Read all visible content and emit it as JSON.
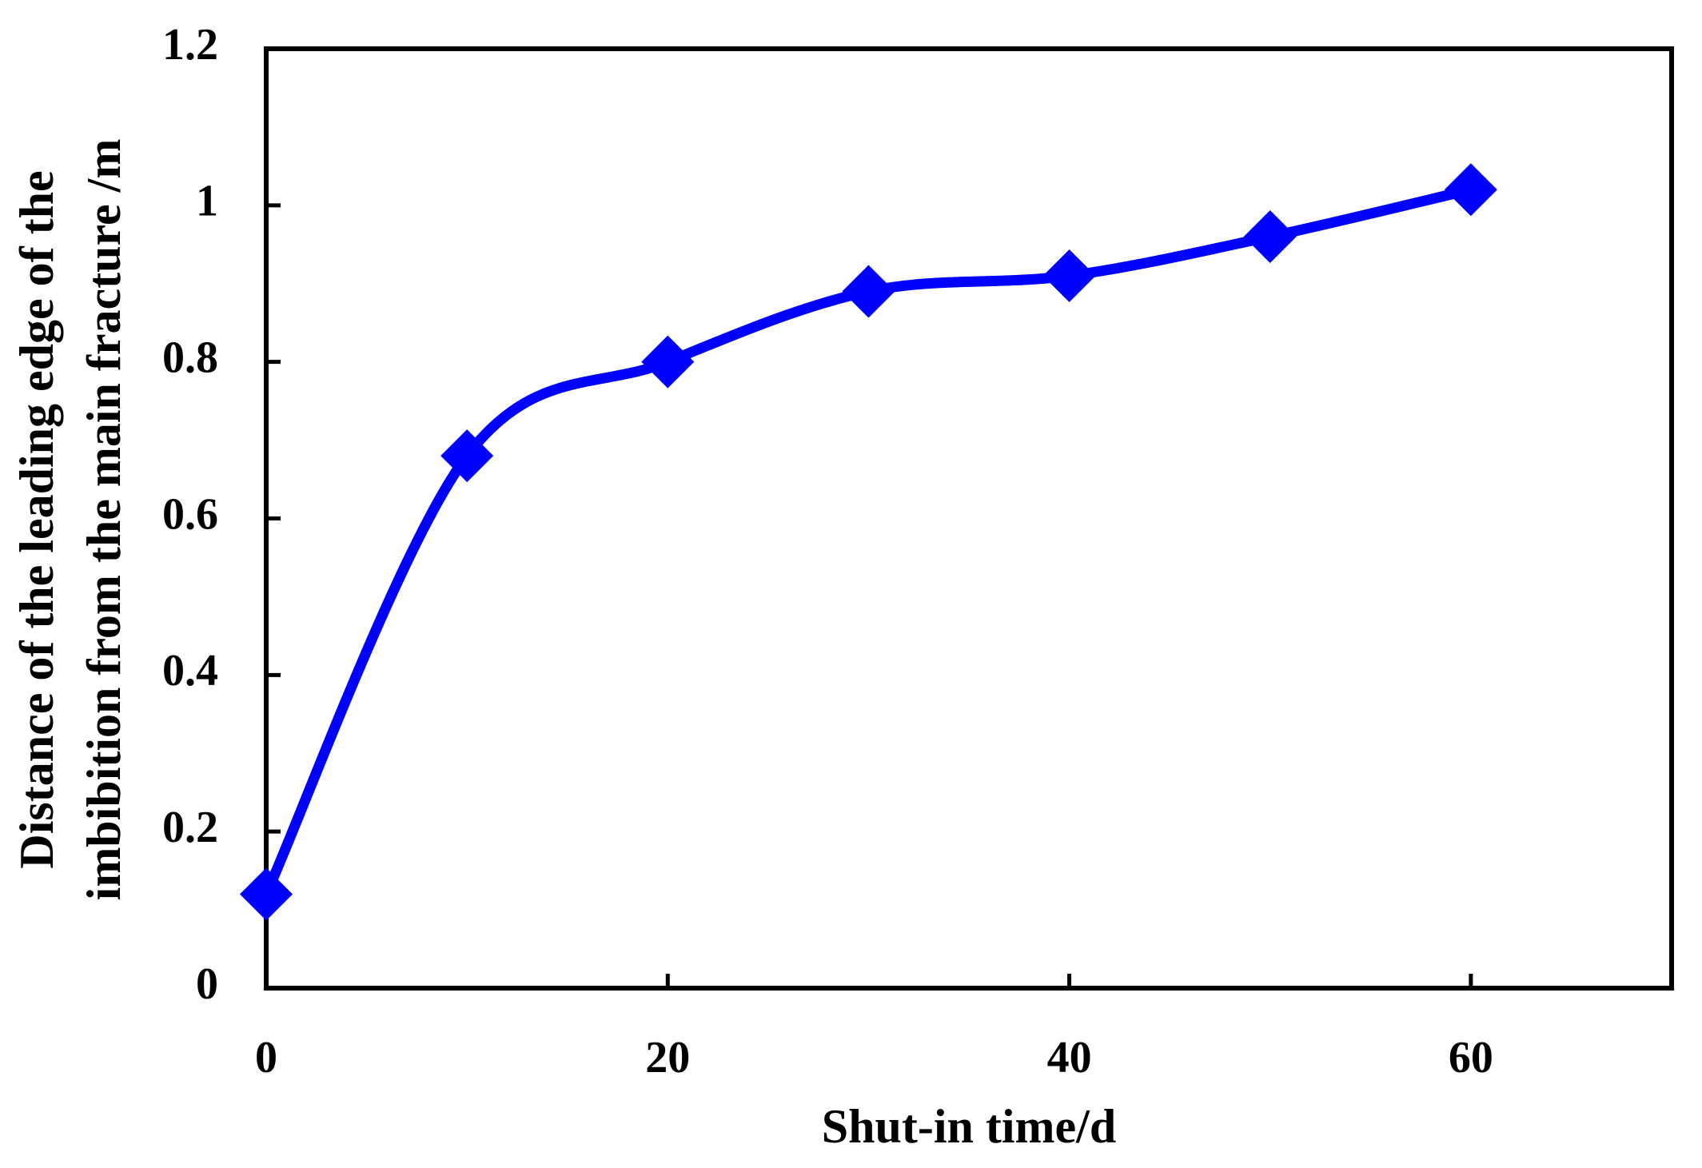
{
  "chart_data": {
    "type": "line",
    "xlabel": "Shut-in time/d",
    "ylabel": [
      "Distance of the leading edge of the",
      "imbibition from the main fracture /m"
    ],
    "x": [
      0,
      10,
      20,
      30,
      40,
      50,
      60
    ],
    "series": [
      {
        "color": "#0000ff",
        "values": [
          0.12,
          0.68,
          0.8,
          0.89,
          0.91,
          0.96,
          1.02
        ]
      }
    ],
    "xlim": [
      0,
      70
    ],
    "xticks": [
      0,
      20,
      40,
      60
    ],
    "ylim": [
      0,
      1.2
    ],
    "yticks": [
      0,
      0.2,
      0.4,
      0.6,
      0.8,
      1,
      1.2
    ],
    "grid": false
  }
}
